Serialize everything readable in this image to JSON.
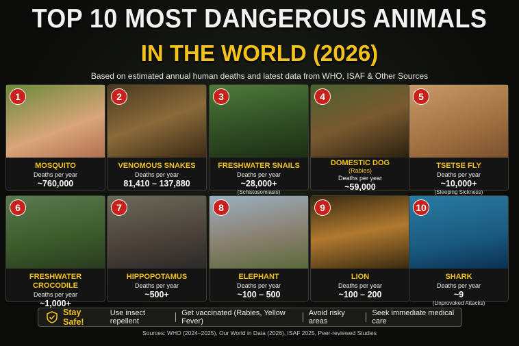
{
  "header": {
    "title": "TOP 10 MOST DANGEROUS ANIMALS",
    "title_line2": "IN THE WORLD (2026)",
    "subtitle": "Based on estimated annual human deaths and latest data from WHO, ISAF & Other Sources"
  },
  "cards": [
    {
      "rank": "1",
      "name": "MOSQUITO",
      "label": "Deaths per year",
      "value": "~760,000"
    },
    {
      "rank": "2",
      "name": "VENOMOUS SNAKES",
      "label": "Deaths per year",
      "value": "81,410 – 137,880"
    },
    {
      "rank": "3",
      "name": "FRESHWATER SNAILS",
      "label": "Deaths per year",
      "value": "~28,000+",
      "detail": "(Schistosomiasis)"
    },
    {
      "rank": "4",
      "name": "DOMESTIC DOG",
      "note": "(Rabies)",
      "label": "Deaths per year",
      "value": "~59,000"
    },
    {
      "rank": "5",
      "name": "TSETSE FLY",
      "label": "Deaths per year",
      "value": "~10,000+",
      "detail": "(Sleeping Sickness)"
    },
    {
      "rank": "6",
      "name": "FRESHWATER CROCODILE",
      "label": "Deaths per year",
      "value": "~1,000+"
    },
    {
      "rank": "7",
      "name": "HIPPOPOTAMUS",
      "label": "Deaths per year",
      "value": "~500+"
    },
    {
      "rank": "8",
      "name": "ELEPHANT",
      "label": "Deaths per year",
      "value": "~100 – 500"
    },
    {
      "rank": "9",
      "name": "LION",
      "label": "Deaths per year",
      "value": "~100 – 200"
    },
    {
      "rank": "10",
      "name": "SHARK",
      "label": "Deaths per year",
      "value": "~9",
      "detail": "(Unprovoked Attacks)"
    }
  ],
  "safety": {
    "title": "Stay Safe!",
    "tips": [
      "Use insect repellent",
      "Get vaccinated (Rabies, Yellow Fever)",
      "Avoid risky areas",
      "Seek immediate medical care"
    ]
  },
  "sources": "Sources: WHO (2024–2025), Our World in Data (2026), ISAF 2025, Peer-reviewed Studies"
}
